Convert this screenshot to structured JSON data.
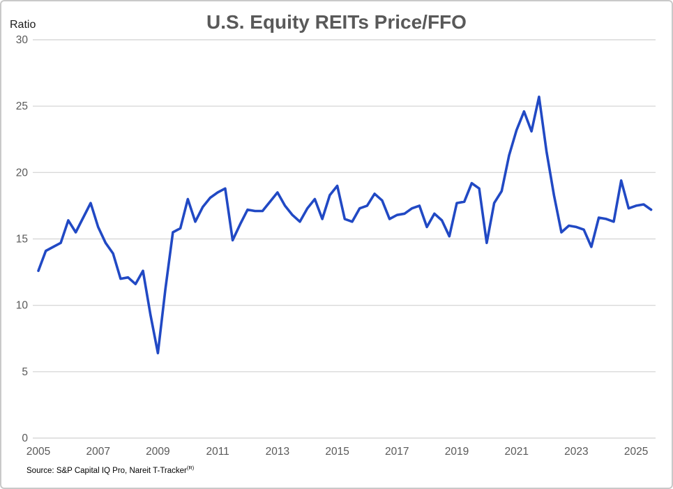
{
  "header": {
    "title": "U.S. Equity REITs Price/FFO",
    "y_axis_label": "Ratio"
  },
  "footer": {
    "source_text": "Source: S&P Capital IQ Pro, Nareit T-Tracker",
    "source_superscript": "(R)"
  },
  "chart_data": {
    "type": "line",
    "title": "U.S. Equity REITs Price/FFO",
    "ylabel": "Ratio",
    "ylim": [
      0,
      30
    ],
    "yticks": [
      0,
      5,
      10,
      15,
      20,
      25,
      30
    ],
    "xticks": [
      2005,
      2007,
      2009,
      2011,
      2013,
      2015,
      2017,
      2019,
      2021,
      2023,
      2025
    ],
    "grid": "horizontal",
    "legend": "none",
    "frequency": "quarterly",
    "start_period": "2005Q1",
    "end_period": "2025Q3",
    "series": [
      {
        "name": "U.S. Equity REITs Price/FFO",
        "color": "#2149c4",
        "values": [
          12.6,
          14.1,
          14.4,
          14.7,
          16.4,
          15.5,
          16.6,
          17.7,
          15.9,
          14.7,
          13.9,
          12.0,
          12.1,
          11.6,
          12.6,
          9.3,
          6.4,
          11.2,
          15.5,
          15.8,
          18.0,
          16.3,
          17.4,
          18.1,
          18.5,
          18.8,
          14.9,
          16.1,
          17.2,
          17.1,
          17.1,
          17.8,
          18.5,
          17.5,
          16.8,
          16.3,
          17.3,
          18.0,
          16.5,
          18.3,
          19.0,
          16.5,
          16.3,
          17.3,
          17.5,
          18.4,
          17.9,
          16.5,
          16.8,
          16.9,
          17.3,
          17.5,
          15.9,
          16.9,
          16.4,
          15.2,
          17.7,
          17.8,
          19.2,
          18.8,
          14.7,
          17.7,
          18.6,
          21.3,
          23.2,
          24.6,
          23.1,
          25.7,
          21.6,
          18.3,
          15.5,
          16.0,
          15.9,
          15.7,
          14.4,
          16.6,
          16.5,
          16.3,
          19.4,
          17.3,
          17.5,
          17.6,
          17.2
        ]
      }
    ],
    "colors": {
      "line": "#2149c4",
      "gridline": "#d9d9d9",
      "tick_label": "#595959",
      "title": "#595959"
    }
  }
}
